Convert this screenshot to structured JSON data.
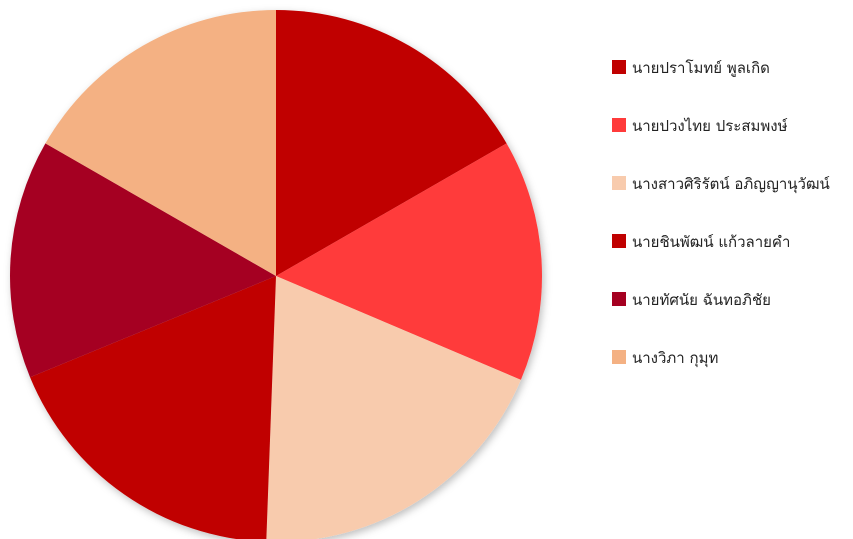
{
  "chart_data": {
    "type": "pie",
    "title": "",
    "series": [
      {
        "name": "นายปราโมทย์  พูลเกิด",
        "value": 1,
        "color": "#c00000"
      },
      {
        "name": "นายปวงไทย ประสมพงษ์",
        "value": 0.88,
        "color": "#ff3b3b"
      },
      {
        "name": "นางสาวศิริรัตน์ อภิญญานุวัฒน์",
        "value": 1.15,
        "color": "#f8cbad"
      },
      {
        "name": "นายชินพัฒน์ แก้วลายคำ",
        "value": 1.09,
        "color": "#c00000"
      },
      {
        "name": "นายทัศนัย ฉันทอภิชัย",
        "value": 0.87,
        "color": "#a50021"
      },
      {
        "name": "นางวิภา กุมุท",
        "value": 1,
        "color": "#f4b183"
      }
    ],
    "start_angle_deg": 0,
    "direction": "clockwise",
    "legend_position": "right"
  }
}
